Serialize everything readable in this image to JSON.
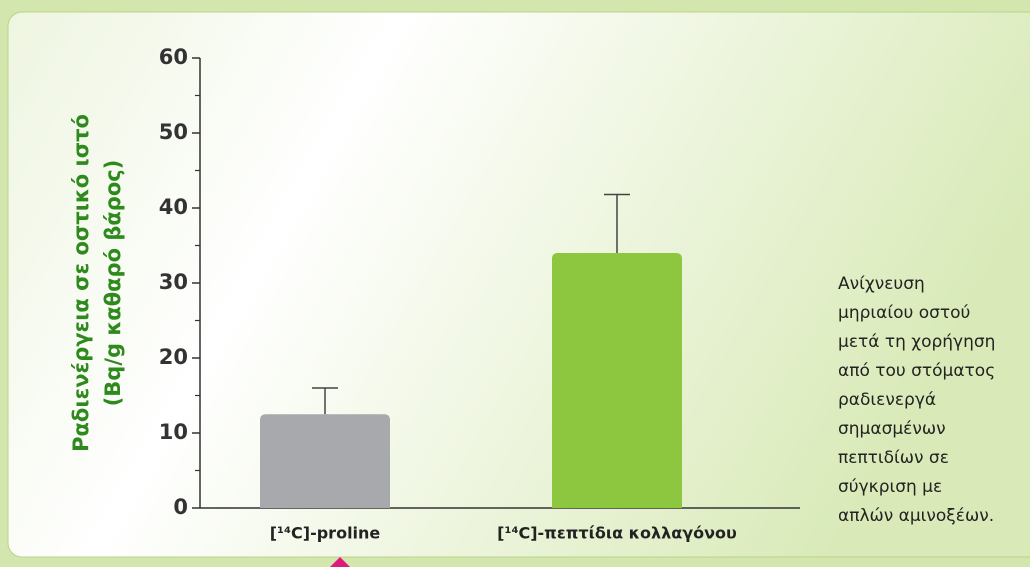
{
  "chart_data": {
    "type": "bar",
    "ylabel": [
      "Ραδιενέργεια σε οστικό ιστό",
      "(Bq/g καθαρό βάρος)"
    ],
    "categories": [
      "[¹⁴C]-proline",
      "[¹⁴C]-πεπτίδια κολλαγόνου"
    ],
    "series": [
      {
        "values": [
          12.5,
          34
        ],
        "errors": [
          3.5,
          7.8
        ],
        "colors": [
          "#a7a9ac",
          "#8dc63f"
        ]
      }
    ],
    "ylim": [
      0,
      60
    ],
    "yticks": [
      0,
      10,
      20,
      30,
      40,
      50,
      60
    ],
    "yminorticks": [
      5,
      15,
      25,
      35,
      45,
      55
    ],
    "caption": [
      "Ανίχνευση",
      "μηριαίου οστού",
      "μετά τη χορήγηση",
      "από του στόματος",
      "ραδιενεργά",
      "σημασμένων",
      "πεπτιδίων σε",
      "σύγκριση με",
      "απλών αμινοξέων."
    ]
  }
}
